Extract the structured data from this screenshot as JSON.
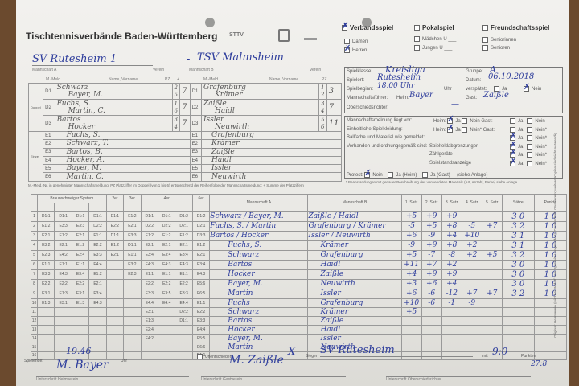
{
  "header": {
    "title": "Tischtennisverbände Baden-Württemberg",
    "logos": [
      "STTV",
      "crest",
      "TTVWH"
    ],
    "match_types": [
      {
        "label": "Verbandsspiel",
        "checked": true
      },
      {
        "label": "Pokalspiel",
        "checked": false
      },
      {
        "label": "Freundschaftsspiel",
        "checked": false
      }
    ],
    "categories": [
      {
        "label": "Damen",
        "checked": false
      },
      {
        "label": "Herren",
        "checked": true
      },
      {
        "label": "Mädchen U ___",
        "checked": false
      },
      {
        "label": "Jungen  U ___",
        "checked": false
      },
      {
        "label": "Seniorinnen",
        "checked": false
      },
      {
        "label": "Senioren",
        "checked": false
      }
    ]
  },
  "teams": {
    "a_label": "Mannschaft A",
    "b_label": "Mannschaft B",
    "verein_label": "Verein",
    "team_a": "SV Rutesheim 1",
    "team_b": "TSV Malmsheim",
    "dash": "-"
  },
  "info": {
    "spielklasse_label": "Spielklasse:",
    "spielklasse": "Kreisliga",
    "gruppe_label": "Gruppe:",
    "gruppe": "A",
    "spielort_label": "Spielort:",
    "spielort": "Rutesheim",
    "datum_label": "Datum:",
    "datum": "06.10.2018",
    "spielbeginn_label": "Spielbeginn:",
    "spielbeginn": "18.00 Uhr",
    "uhr_label": "Uhr",
    "verspaetet_label": "verspätet:",
    "ja": "Ja",
    "nein": "Nein",
    "mf_label": "Mannschaftsführer:",
    "heim_label": "Heim:",
    "heim_mf": "Bayer",
    "gast_label": "Gast:",
    "gast_mf": "Zaißle",
    "osr_label": "Oberschiedsrichter:",
    "osr": "—"
  },
  "checks": {
    "rows": [
      {
        "label": "Mannschaftsmeldung liegt vor:",
        "heim": "Heim:",
        "gast": "Gast:",
        "nein": "Nein",
        "ja": "Ja",
        "neinstar": "Nein"
      },
      {
        "label": "Einheitliche Spielkleidung:",
        "heim": "Heim:",
        "gast": "Gast:",
        "nein": "Nein*",
        "ja": "Ja",
        "neinstar": "Nein*"
      },
      {
        "label": "Ballfarbe und Material wie gemeldet:",
        "ja": "Ja",
        "neinstar": "Nein*"
      },
      {
        "label": "Vorhanden und ordnungsgemäß sind:",
        "sub": "Spielfeldabgrenzungen",
        "ja": "Ja",
        "neinstar": "Nein*"
      },
      {
        "sub": "Zählgeräte",
        "ja": "Ja",
        "neinstar": "Nein*"
      },
      {
        "sub": "Spielstandsanzeige",
        "ja": "Ja",
        "neinstar": "Nein*"
      }
    ],
    "protest_label": "Protest:",
    "protest_nein": "Nein",
    "protest_heim": "Ja (Heim)",
    "protest_gast": "Ja (Gast)",
    "anlage": "(siehe Anlage)",
    "footnote": "* Beanstandungen mit genauer Beschreibung des verwendeten Materials (Art, Anzahl, Farbe) siehe Anlage"
  },
  "players": {
    "col_mmeld": "M.-Meld.",
    "col_name": "Name, Vorname",
    "col_pz": "PZ",
    "col_plus": "+",
    "doppel_label": "Doppel",
    "einzel_label": "Einzel",
    "a_doubles": [
      {
        "pos": "D1",
        "p1": "Schwarz",
        "p2": "Bayer, M.",
        "pz1": "2",
        "pz2": "5",
        "sum": "7"
      },
      {
        "pos": "D2",
        "p1": "Fuchs, S.",
        "p2": "Martin, C.",
        "pz1": "1",
        "pz2": "6",
        "sum": "7"
      },
      {
        "pos": "D3",
        "p1": "Bartos",
        "p2": "Hocker",
        "pz1": "3",
        "pz2": "4",
        "sum": "7"
      }
    ],
    "b_doubles": [
      {
        "pos": "D1",
        "p1": "Grafenburg",
        "p2": "Krämer",
        "pz1": "1",
        "pz2": "2",
        "sum": "3"
      },
      {
        "pos": "D2",
        "p1": "Zaißle",
        "p2": "Haidl",
        "pz1": "3",
        "pz2": "4",
        "sum": "7"
      },
      {
        "pos": "D3",
        "p1": "Issler",
        "p2": "Neuwirth",
        "pz1": "5",
        "pz2": "6",
        "sum": "11"
      }
    ],
    "a_singles": [
      {
        "pos": "E1",
        "name": "Fuchs, S."
      },
      {
        "pos": "E2",
        "name": "Schwarz, T."
      },
      {
        "pos": "E3",
        "name": "Bartos, B."
      },
      {
        "pos": "E4",
        "name": "Hocker, A."
      },
      {
        "pos": "E5",
        "name": "Bayer, M."
      },
      {
        "pos": "E6",
        "name": "Martin, C."
      }
    ],
    "b_singles": [
      {
        "pos": "E1",
        "name": "Grafenburg"
      },
      {
        "pos": "E2",
        "name": "Krämer"
      },
      {
        "pos": "E3",
        "name": "Zaißle"
      },
      {
        "pos": "E4",
        "name": "Haidl"
      },
      {
        "pos": "E5",
        "name": "Issler"
      },
      {
        "pos": "E6",
        "name": "Neuwirth"
      }
    ],
    "footnote": "M.-Meld.-Nr. in genehmigter Mannschaftsmeldung; PZ Platzziffer im Doppel (von 1 bis 6) entsprechend der Reihenfolge der Mannschaftsmeldung; + Summe der Platzziffern"
  },
  "games": {
    "headers": {
      "braunschweiger": "Braunschweiger System",
      "zweier": "2er",
      "dreier": "3er",
      "vierer": "4er",
      "sechser": "6er",
      "team_a": "Mannschaft A",
      "team_b": "Mannschaft B",
      "satz": [
        "1. Satz",
        "2. Satz",
        "3. Satz",
        "4. Satz",
        "5. Satz"
      ],
      "saetze": "Sätze",
      "punkte": "Punkte"
    },
    "system": [
      [
        "D1:1",
        "D1:1",
        "D1:1",
        "D1:1",
        "E1:1",
        "E1:2",
        "D1:1",
        "D1:1",
        "D1:2",
        "D1:2"
      ],
      [
        "E1:2",
        "E3:3",
        "E3:3",
        "D2:2",
        "E2:2",
        "E2:1",
        "D2:2",
        "D2:2",
        "D2:1",
        "D2:1"
      ],
      [
        "E2:1",
        "E1:2",
        "E2:1",
        "E1:1",
        "D1:1",
        "E3:3",
        "E1:2",
        "E1:2",
        "E1:2",
        "D3:3"
      ],
      [
        "E3:2",
        "E2:1",
        "E1:2",
        "E2:2",
        "E1:2",
        "D1:1",
        "E2:1",
        "E2:1",
        "E2:1",
        "E1:2"
      ],
      [
        "E2:3",
        "E4:2",
        "E2:4",
        "E3:3",
        "E2:1",
        "E1:1",
        "E3:4",
        "E3:4",
        "E3:4",
        "E2:1"
      ],
      [
        "E1:1",
        "E1:1",
        "E1:1",
        "E4:4",
        "",
        "E3:2",
        "E4:3",
        "E4:3",
        "E4:3",
        "E3:4"
      ],
      [
        "E3:3",
        "E4:3",
        "E3:4",
        "E1:2",
        "",
        "E2:3",
        "E1:1",
        "E1:1",
        "E1:1",
        "E4:3"
      ],
      [
        "E2:2",
        "E2:2",
        "E2:2",
        "E2:1",
        "",
        "",
        "E2:2",
        "E2:2",
        "E2:2",
        "E5:6"
      ],
      [
        "E3:1",
        "E1:3",
        "E3:1",
        "E3:4",
        "",
        "",
        "E3:3",
        "E3:5",
        "E3:3",
        "E6:5"
      ],
      [
        "E1:3",
        "E3:1",
        "E1:3",
        "E4:3",
        "",
        "",
        "E4:4",
        "E4:4",
        "E4:4",
        "E1:1"
      ],
      [
        "",
        "",
        "",
        "",
        "",
        "",
        "E3:1",
        "",
        "D2:2",
        "E2:2"
      ],
      [
        "",
        "",
        "",
        "",
        "",
        "",
        "E1:3",
        "",
        "D1:1",
        "E3:3"
      ],
      [
        "",
        "",
        "",
        "",
        "",
        "",
        "E2:4",
        "",
        "",
        "E4:4"
      ],
      [
        "",
        "",
        "",
        "",
        "",
        "",
        "E4:2",
        "",
        "",
        "E5:5"
      ],
      [
        "",
        "",
        "",
        "",
        "",
        "",
        "",
        "",
        "",
        "E6:6"
      ],
      [
        "",
        "",
        "",
        "",
        "",
        "",
        "",
        "",
        "",
        "D1:1"
      ]
    ],
    "matches": [
      {
        "a": "Schwarz / Bayer, M.",
        "b": "Zaißle / Haidl",
        "sets": [
          "+5",
          "+9",
          "+9",
          "",
          ""
        ],
        "saetze": "3 0",
        "punkte": "1 0"
      },
      {
        "a": "Fuchs, S. / Martin",
        "b": "Grafenburg / Krämer",
        "sets": [
          "-5",
          "+5",
          "+8",
          "-5",
          "+7"
        ],
        "saetze": "3 2",
        "punkte": "1 0"
      },
      {
        "a": "Bartos / Hocker",
        "b": "Issler / Neuwirth",
        "sets": [
          "+6",
          "-9",
          "+4",
          "+10",
          ""
        ],
        "saetze": "3 1",
        "punkte": "1 0"
      },
      {
        "a": "Fuchs, S.",
        "b": "Krämer",
        "sets": [
          "-9",
          "+9",
          "+8",
          "+2",
          ""
        ],
        "saetze": "3 1",
        "punkte": "1 0"
      },
      {
        "a": "Schwarz",
        "b": "Grafenburg",
        "sets": [
          "+5",
          "-7",
          "-8",
          "+2",
          "+5"
        ],
        "saetze": "3 2",
        "punkte": "1 0"
      },
      {
        "a": "Bartos",
        "b": "Haidl",
        "sets": [
          "+11",
          "+7",
          "+2",
          "",
          ""
        ],
        "saetze": "3 0",
        "punkte": "1 0"
      },
      {
        "a": "Hocker",
        "b": "Zaißle",
        "sets": [
          "+4",
          "+9",
          "+9",
          "",
          ""
        ],
        "saetze": "3 0",
        "punkte": "1 0"
      },
      {
        "a": "Bayer, M.",
        "b": "Neuwirth",
        "sets": [
          "+3",
          "+6",
          "+4",
          "",
          ""
        ],
        "saetze": "3 0",
        "punkte": "1 0"
      },
      {
        "a": "Martin",
        "b": "Issler",
        "sets": [
          "+6",
          "-6",
          "-12",
          "+7",
          "+7"
        ],
        "saetze": "3 2",
        "punkte": "1 0"
      },
      {
        "a": "Fuchs",
        "b": "Grafenburg",
        "sets": [
          "+10",
          "-6",
          "-1",
          "-9",
          ""
        ],
        "saetze": "",
        "punkte": ""
      },
      {
        "a": "Schwarz",
        "b": "Krämer",
        "sets": [
          "+5",
          "",
          "",
          "",
          ""
        ],
        "saetze": "",
        "punkte": ""
      },
      {
        "a": "Bartos",
        "b": "Zaißle",
        "sets": [
          "",
          "",
          "",
          "",
          ""
        ],
        "saetze": "",
        "punkte": ""
      },
      {
        "a": "Hocker",
        "b": "Haidl",
        "sets": [
          "",
          "",
          "",
          "",
          ""
        ],
        "saetze": "",
        "punkte": ""
      },
      {
        "a": "Bayer, M.",
        "b": "Issler",
        "sets": [
          "",
          "",
          "",
          "",
          ""
        ],
        "saetze": "",
        "punkte": ""
      },
      {
        "a": "Martin",
        "b": "Neuwirth",
        "sets": [
          "",
          "",
          "",
          "",
          ""
        ],
        "saetze": "",
        "punkte": ""
      },
      {
        "a": "",
        "b": "",
        "sets": [
          "",
          "",
          "",
          "",
          ""
        ],
        "saetze": "",
        "punkte": ""
      }
    ]
  },
  "footer": {
    "spielende_label": "Spielende:",
    "spielende": "19.46",
    "uhr": "Uhr",
    "unentschieden": "Unentschieden",
    "sieger_mark": "X",
    "sieger_label": "Sieger",
    "sieger": "SV Rutesheim",
    "mit": "mit",
    "score": "9:0",
    "punkte_label": "Punkten",
    "punkte": "27:8",
    "sig_heim_label": "Unterschrift Heimverein",
    "sig_gast_label": "Unterschrift Gastverein",
    "sig_osr_label": "Unterschrift Oberschiedsrichter",
    "sig_heim": "M. Bayer",
    "sig_gast": "M. Zaißle"
  },
  "side_note": "Original: Heimverein (wird bei Bedarf vom Spielleiter angefordert); Durchschrift: Gastverein; weitere Kopien sind nicht notwendig",
  "colors": {
    "ink": "#2e3d9c",
    "paper": "#eeede9",
    "table": "#ff0000"
  }
}
